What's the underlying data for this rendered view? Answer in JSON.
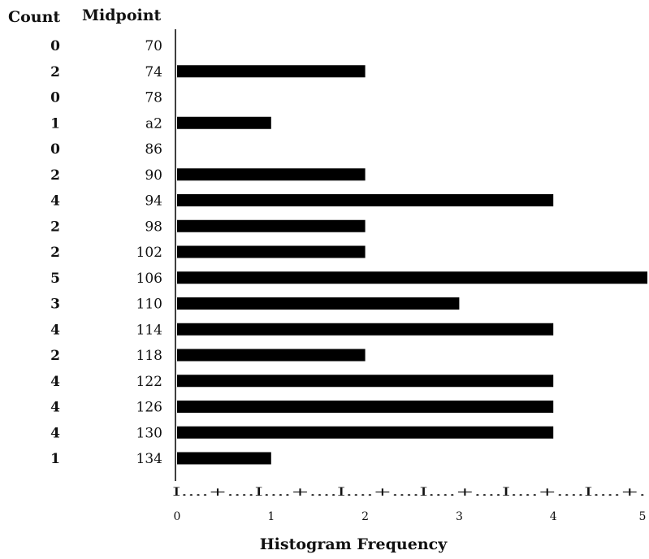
{
  "chart_data": {
    "type": "bar",
    "orientation": "horizontal",
    "headers": {
      "count": "Count",
      "midpoint": "Midpoint"
    },
    "categories": [
      "70",
      "74",
      "78",
      "a2",
      "86",
      "90",
      "94",
      "98",
      "102",
      "106",
      "110",
      "114",
      "118",
      "122",
      "126",
      "130",
      "134"
    ],
    "values": [
      0,
      2,
      0,
      1,
      0,
      2,
      4,
      2,
      2,
      5,
      3,
      4,
      2,
      4,
      4,
      4,
      1
    ],
    "count_labels": [
      "0",
      "2",
      "0",
      "1",
      "0",
      "2",
      "4",
      "2",
      "2",
      "5",
      "3",
      "4",
      "2",
      "4",
      "4",
      "4",
      "1"
    ],
    "xlabel": "Histogram Frequency",
    "xlim": [
      0,
      5
    ],
    "x_ticks": [
      "0",
      "1",
      "2",
      "3",
      "4",
      "5"
    ],
    "axis_ruler": "I....+....I....+....I....+....I....+....I....+....I....+.",
    "bar_color": "#000000",
    "grid": false
  }
}
